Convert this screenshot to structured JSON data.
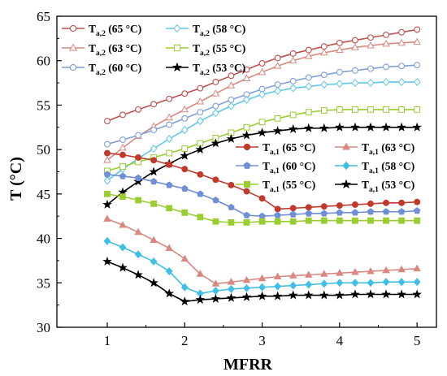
{
  "chart_data": {
    "type": "line",
    "xlabel": "MFRR",
    "ylabel": "T (°C)",
    "xlim": [
      0.35,
      5.25
    ],
    "ylim": [
      30,
      65
    ],
    "xticks": [
      1,
      2,
      3,
      4,
      5
    ],
    "yticks": [
      30,
      35,
      40,
      45,
      50,
      55,
      60,
      65
    ],
    "x": [
      1.0,
      1.2,
      1.4,
      1.6,
      1.8,
      2.0,
      2.2,
      2.4,
      2.6,
      2.8,
      3.0,
      3.2,
      3.4,
      3.6,
      3.8,
      4.0,
      4.2,
      4.4,
      4.6,
      4.8,
      5.0
    ],
    "grid": false,
    "series": [
      {
        "group": "a2",
        "name": "T",
        "sub": "a,2",
        "temp": " (65 °C)",
        "color": "#c0504d",
        "marker": "circle",
        "filled": false,
        "values": [
          53.2,
          53.9,
          54.5,
          55.1,
          55.7,
          56.3,
          56.9,
          57.6,
          58.3,
          59.0,
          59.7,
          60.3,
          60.8,
          61.2,
          61.6,
          62.0,
          62.3,
          62.6,
          62.9,
          63.2,
          63.5
        ]
      },
      {
        "group": "a2",
        "name": "T",
        "sub": "a,2",
        "temp": " (63 °C)",
        "color": "#d98880",
        "marker": "triangle",
        "filled": false,
        "values": [
          48.8,
          50.2,
          51.5,
          52.6,
          53.6,
          54.5,
          55.4,
          56.3,
          57.2,
          58.0,
          58.7,
          59.4,
          60.0,
          60.5,
          60.9,
          61.2,
          61.5,
          61.7,
          61.9,
          62.0,
          62.1
        ]
      },
      {
        "group": "a2",
        "name": "T",
        "sub": "a,2",
        "temp": " (60 °C)",
        "color": "#7f9fd9",
        "marker": "circle",
        "filled": false,
        "values": [
          50.6,
          51.1,
          51.6,
          52.2,
          52.8,
          53.5,
          54.2,
          54.9,
          55.6,
          56.2,
          56.8,
          57.3,
          57.7,
          58.1,
          58.4,
          58.7,
          58.9,
          59.1,
          59.3,
          59.4,
          59.5
        ]
      },
      {
        "group": "a2",
        "name": "T",
        "sub": "a,2",
        "temp": " (58 °C)",
        "color": "#5fc8e8",
        "marker": "diamond",
        "filled": false,
        "values": [
          46.5,
          47.8,
          49.0,
          50.1,
          51.2,
          52.2,
          53.2,
          54.1,
          54.9,
          55.6,
          56.2,
          56.6,
          56.9,
          57.1,
          57.3,
          57.4,
          57.5,
          57.5,
          57.6,
          57.6,
          57.6
        ]
      },
      {
        "group": "a2",
        "name": "T",
        "sub": "a,2",
        "temp": " (55 °C)",
        "color": "#9acd32",
        "marker": "square",
        "filled": false,
        "values": [
          47.6,
          48.1,
          48.6,
          49.1,
          49.6,
          50.1,
          50.7,
          51.3,
          51.9,
          52.5,
          53.1,
          53.5,
          53.9,
          54.2,
          54.4,
          54.5,
          54.5,
          54.5,
          54.5,
          54.5,
          54.5
        ]
      },
      {
        "group": "a2",
        "name": "T",
        "sub": "a,2",
        "temp": " (53 °C)",
        "color": "#000000",
        "marker": "star",
        "filled": false,
        "values": [
          43.8,
          45.2,
          46.4,
          47.5,
          48.4,
          49.3,
          50.0,
          50.7,
          51.2,
          51.6,
          51.9,
          52.1,
          52.3,
          52.4,
          52.4,
          52.5,
          52.5,
          52.5,
          52.5,
          52.5,
          52.5
        ]
      },
      {
        "group": "a1",
        "name": "T",
        "sub": "a,1",
        "temp": " (65 °C)",
        "color": "#c0392b",
        "marker": "circle",
        "filled": true,
        "values": [
          49.6,
          49.4,
          49.1,
          48.8,
          48.3,
          47.8,
          47.2,
          46.6,
          46.0,
          45.3,
          44.5,
          43.3,
          43.4,
          43.5,
          43.6,
          43.7,
          43.8,
          43.9,
          44.0,
          44.0,
          44.1
        ]
      },
      {
        "group": "a1",
        "name": "T",
        "sub": "a,1",
        "temp": " (63 °C)",
        "color": "#d98880",
        "marker": "triangle",
        "filled": true,
        "values": [
          42.2,
          41.5,
          40.7,
          39.8,
          38.9,
          37.7,
          36.0,
          34.9,
          35.1,
          35.3,
          35.5,
          35.7,
          35.8,
          35.9,
          36.0,
          36.1,
          36.2,
          36.3,
          36.4,
          36.5,
          36.6
        ]
      },
      {
        "group": "a1",
        "name": "T",
        "sub": "a,1",
        "temp": " (60 °C)",
        "color": "#6f8fd6",
        "marker": "pentagon",
        "filled": true,
        "values": [
          47.2,
          47.0,
          46.8,
          46.4,
          46.0,
          45.6,
          45.0,
          44.3,
          43.5,
          42.6,
          42.5,
          42.6,
          42.7,
          42.8,
          42.8,
          42.9,
          42.9,
          43.0,
          43.0,
          43.0,
          43.1
        ]
      },
      {
        "group": "a1",
        "name": "T",
        "sub": "a,1",
        "temp": " (58 °C)",
        "color": "#3fbfe6",
        "marker": "diamond",
        "filled": true,
        "values": [
          39.7,
          39.0,
          38.2,
          37.4,
          36.3,
          34.5,
          33.8,
          34.1,
          34.3,
          34.4,
          34.5,
          34.6,
          34.7,
          34.8,
          34.9,
          35.0,
          35.0,
          35.0,
          35.1,
          35.1,
          35.1
        ]
      },
      {
        "group": "a1",
        "name": "T",
        "sub": "a,1",
        "temp": " (55 °C)",
        "color": "#9acd32",
        "marker": "square",
        "filled": true,
        "values": [
          45.0,
          44.7,
          44.3,
          43.9,
          43.4,
          42.9,
          42.4,
          41.9,
          41.8,
          41.8,
          41.9,
          41.9,
          41.9,
          42.0,
          42.0,
          42.0,
          42.0,
          42.0,
          42.0,
          42.0,
          42.0
        ]
      },
      {
        "group": "a1",
        "name": "T",
        "sub": "a,1",
        "temp": " (53 °C)",
        "color": "#000000",
        "marker": "star",
        "filled": true,
        "values": [
          37.4,
          36.7,
          35.9,
          35.0,
          33.8,
          32.9,
          33.1,
          33.2,
          33.3,
          33.4,
          33.5,
          33.5,
          33.6,
          33.6,
          33.6,
          33.6,
          33.7,
          33.7,
          33.7,
          33.7,
          33.7
        ]
      }
    ]
  }
}
